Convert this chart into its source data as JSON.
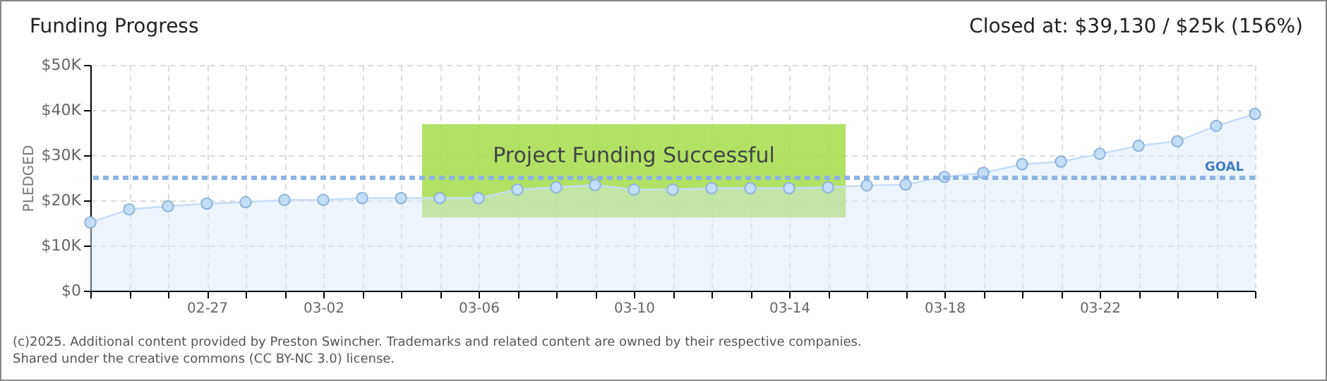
{
  "chart_data": {
    "type": "area",
    "title": "Funding Progress",
    "ylabel": "PLEDGED",
    "annotations": [
      "Closed at:  $39,130 / $25k (156%)",
      "Project Funding Successful",
      "(c)2025. Additional content provided by Preston Swincher. Trademarks and related content are owned by their respective companies.",
      "Shared under the creative commons (CC BY-NC 3.0) license."
    ],
    "x": [
      "--02-24",
      "--02-25",
      "--02-26",
      "--02-27",
      "--02-28",
      "--03-01",
      "--03-02",
      "--03-03",
      "--03-04",
      "--03-05",
      "--03-06",
      "--03-07",
      "--03-08",
      "--03-09",
      "--03-10",
      "--03-11",
      "--03-12",
      "--03-13",
      "--03-14",
      "--03-15",
      "--03-16",
      "--03-17",
      "--03-18",
      "--03-19",
      "--03-20",
      "--03-21",
      "--03-22",
      "--03-23",
      "--03-24",
      "--03-25",
      "--03-26"
    ],
    "series": [
      {
        "color": "#c4ddf8",
        "values": [
          15100,
          18000,
          18700,
          19300,
          19600,
          20100,
          20100,
          20500,
          20500,
          20500,
          20500,
          22400,
          22900,
          23400,
          22400,
          22400,
          22700,
          22700,
          22700,
          22900,
          23300,
          23500,
          25200,
          26100,
          28000,
          28600,
          30300,
          32100,
          33100,
          36500,
          39130
        ]
      }
    ],
    "marker": "circle",
    "grid": true,
    "xlim": [
      "--02-24",
      "--03-26"
    ],
    "xticks": [
      {
        "value": "--02-24",
        "label": null
      },
      {
        "value": "--02-25",
        "label": null
      },
      {
        "value": "--02-26",
        "label": null
      },
      {
        "value": "--02-27",
        "label": "02-27"
      },
      {
        "value": "--02-28",
        "label": null
      },
      {
        "value": "--03-01",
        "label": null
      },
      {
        "value": "--03-02",
        "label": "03-02"
      },
      {
        "value": "--03-03",
        "label": null
      },
      {
        "value": "--03-04",
        "label": null
      },
      {
        "value": "--03-05",
        "label": null
      },
      {
        "value": "--03-06",
        "label": "03-06"
      },
      {
        "value": "--03-07",
        "label": null
      },
      {
        "value": "--03-08",
        "label": null
      },
      {
        "value": "--03-09",
        "label": null
      },
      {
        "value": "--03-10",
        "label": "03-10"
      },
      {
        "value": "--03-11",
        "label": null
      },
      {
        "value": "--03-12",
        "label": null
      },
      {
        "value": "--03-13",
        "label": null
      },
      {
        "value": "--03-14",
        "label": "03-14"
      },
      {
        "value": "--03-15",
        "label": null
      },
      {
        "value": "--03-16",
        "label": null
      },
      {
        "value": "--03-17",
        "label": null
      },
      {
        "value": "--03-18",
        "label": "03-18"
      },
      {
        "value": "--03-19",
        "label": null
      },
      {
        "value": "--03-20",
        "label": null
      },
      {
        "value": "--03-21",
        "label": null
      },
      {
        "value": "--03-22",
        "label": "03-22"
      },
      {
        "value": "--03-23",
        "label": null
      },
      {
        "value": "--03-24",
        "label": null
      },
      {
        "value": "--03-25",
        "label": null
      },
      {
        "value": "--03-26",
        "label": null
      }
    ],
    "ylim": [
      0,
      50000
    ],
    "yticks": [
      {
        "value": 0,
        "label": "$0"
      },
      {
        "value": 10000,
        "label": "$10K"
      },
      {
        "value": 20000,
        "label": "$20K"
      },
      {
        "value": 30000,
        "label": "$30K"
      },
      {
        "value": 40000,
        "label": "$40K"
      },
      {
        "value": 50000,
        "label": "$50K"
      }
    ],
    "ref_lines": [
      {
        "axis": "y",
        "value": 25000,
        "label": "GOAL",
        "color": "#8db3e2",
        "line_style": "dashed"
      }
    ]
  }
}
